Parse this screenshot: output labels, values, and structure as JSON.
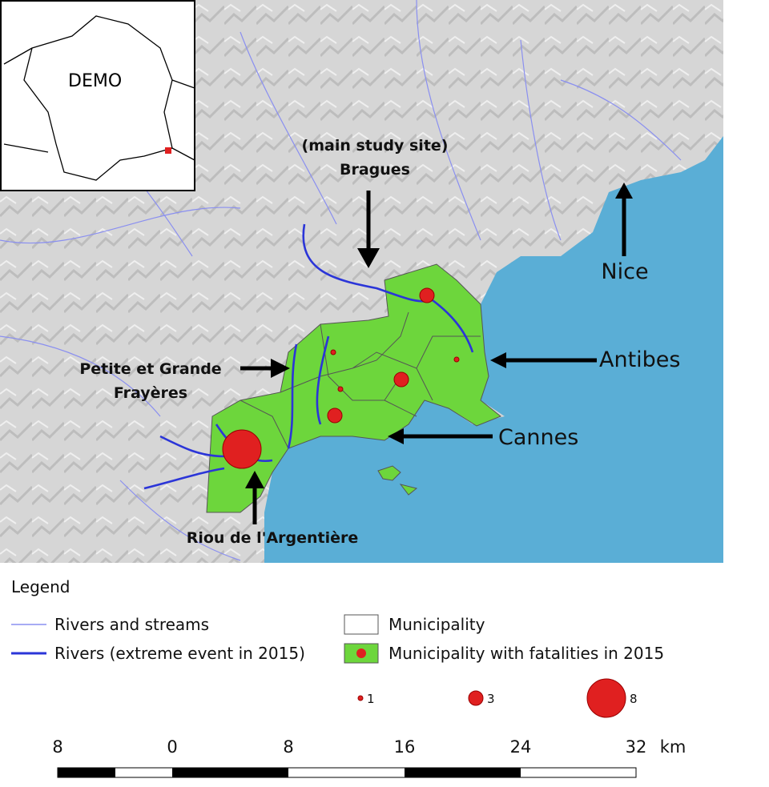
{
  "inset": {
    "label": "DEMO"
  },
  "labels": {
    "bragues_note": "(main study site)",
    "bragues": "Bragues",
    "nice": "Nice",
    "antibes": "Antibes",
    "cannes": "Cannes",
    "frayeres_1": "Petite et Grande",
    "frayeres_2": "Frayères",
    "riou": "Riou de l'Argentière"
  },
  "fatalities": [
    3,
    1,
    1,
    3,
    1,
    3,
    8
  ],
  "legend": {
    "title": "Legend",
    "items": [
      "Rivers and streams",
      "Rivers (extreme event in 2015)",
      "Municipality",
      "Municipality with fatalities in 2015"
    ],
    "sizes": [
      1,
      3,
      8
    ]
  },
  "scale_bar": {
    "labels": [
      "8",
      "0",
      "8",
      "16",
      "24",
      "32"
    ],
    "unit": "km"
  }
}
